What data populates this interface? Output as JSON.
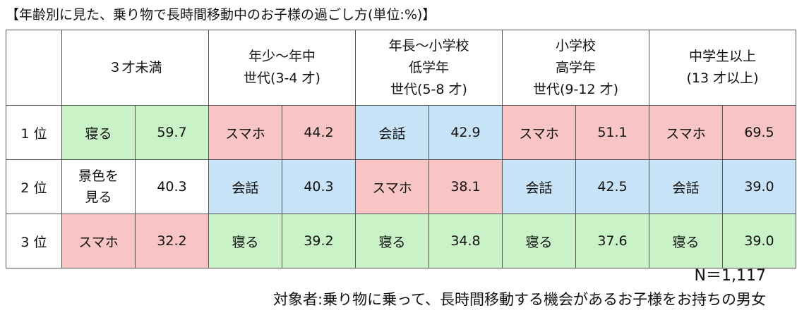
{
  "title": "【年齢別に見た、乗り物で長時間移動中のお子様の過ごし方(単位:%)】",
  "columns": [
    [
      "３才未満"
    ],
    [
      "年少～年中",
      "世代(3-4 才)"
    ],
    [
      "年長～小学校",
      "低学年",
      "世代(5-8 才)"
    ],
    [
      "小学校",
      "高学年",
      "世代(9-12 才)"
    ],
    [
      "中学生以上",
      "(13 才以上)"
    ]
  ],
  "ranks": [
    "1 位",
    "2 位",
    "3 位"
  ],
  "activity_colors": {
    "寝る": "#c9f2c7",
    "スマホ": "#f8c4c4",
    "会話": "#c7e3f7",
    "景色を見る": "#ffffff"
  },
  "chart_data": {
    "type": "table",
    "unit": "%",
    "rows": [
      [
        {
          "activity": "寝る",
          "value": "59.7"
        },
        {
          "activity": "スマホ",
          "value": "44.2"
        },
        {
          "activity": "会話",
          "value": "42.9"
        },
        {
          "activity": "スマホ",
          "value": "51.1"
        },
        {
          "activity": "スマホ",
          "value": "69.5"
        }
      ],
      [
        {
          "activity": "景色を見る",
          "display": [
            "景色を",
            "見る"
          ],
          "value": "40.3"
        },
        {
          "activity": "会話",
          "value": "40.3"
        },
        {
          "activity": "スマホ",
          "value": "38.1"
        },
        {
          "activity": "会話",
          "value": "42.5"
        },
        {
          "activity": "会話",
          "value": "39.0"
        }
      ],
      [
        {
          "activity": "スマホ",
          "value": "32.2"
        },
        {
          "activity": "寝る",
          "value": "39.2"
        },
        {
          "activity": "寝る",
          "value": "34.8"
        },
        {
          "activity": "寝る",
          "value": "37.6"
        },
        {
          "activity": "寝る",
          "value": "39.0"
        }
      ]
    ]
  },
  "footer": {
    "sample_size": "N＝1,117",
    "note": "対象者:乗り物に乗って、長時間移動する機会があるお子様をお持ちの男女"
  }
}
